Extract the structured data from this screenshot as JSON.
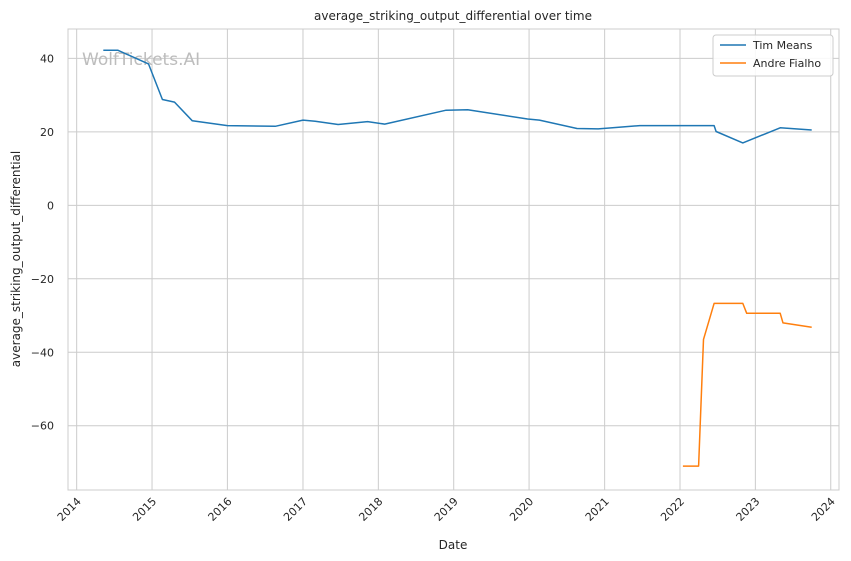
{
  "chart_data": {
    "type": "line",
    "title": "average_striking_output_differential over time",
    "xlabel": "Date",
    "ylabel": "average_striking_output_differential",
    "watermark": "WolfTickets.AI",
    "xlim": [
      "2013-11-20",
      "2024-02-10"
    ],
    "ylim": [
      -77.5,
      48
    ],
    "x_ticks": [
      "2014",
      "2015",
      "2016",
      "2017",
      "2018",
      "2019",
      "2020",
      "2021",
      "2022",
      "2023",
      "2024"
    ],
    "y_ticks": [
      40,
      20,
      0,
      -20,
      -40,
      -60
    ],
    "grid": true,
    "legend_position": "top-right",
    "series": [
      {
        "name": "Tim Means",
        "color": "#1f77b4",
        "points": [
          [
            "2014-05-10",
            42.2
          ],
          [
            "2014-07-20",
            42.2
          ],
          [
            "2014-12-15",
            38.5
          ],
          [
            "2015-02-20",
            28.8
          ],
          [
            "2015-04-20",
            28.1
          ],
          [
            "2015-07-15",
            23.0
          ],
          [
            "2016-01-01",
            21.7
          ],
          [
            "2016-08-20",
            21.5
          ],
          [
            "2017-01-01",
            23.2
          ],
          [
            "2017-03-01",
            22.9
          ],
          [
            "2017-06-20",
            22.0
          ],
          [
            "2017-11-10",
            22.8
          ],
          [
            "2018-02-01",
            22.1
          ],
          [
            "2018-11-25",
            25.9
          ],
          [
            "2019-03-10",
            26.0
          ],
          [
            "2019-12-25",
            23.5
          ],
          [
            "2020-02-20",
            23.2
          ],
          [
            "2020-08-20",
            20.9
          ],
          [
            "2020-12-01",
            20.8
          ],
          [
            "2021-06-20",
            21.7
          ],
          [
            "2022-06-15",
            21.7
          ],
          [
            "2022-06-25",
            20.1
          ],
          [
            "2022-11-01",
            17.0
          ],
          [
            "2023-05-01",
            21.1
          ],
          [
            "2023-10-01",
            20.5
          ]
        ]
      },
      {
        "name": "Andre Fialho",
        "color": "#ff7f0e",
        "points": [
          [
            "2022-01-15",
            -71.0
          ],
          [
            "2022-04-01",
            -71.0
          ],
          [
            "2022-04-25",
            -36.5
          ],
          [
            "2022-06-15",
            -26.7
          ],
          [
            "2022-11-01",
            -26.7
          ],
          [
            "2022-11-20",
            -29.4
          ],
          [
            "2023-05-01",
            -29.4
          ],
          [
            "2023-05-15",
            -32.0
          ],
          [
            "2023-10-01",
            -33.2
          ]
        ]
      }
    ]
  }
}
